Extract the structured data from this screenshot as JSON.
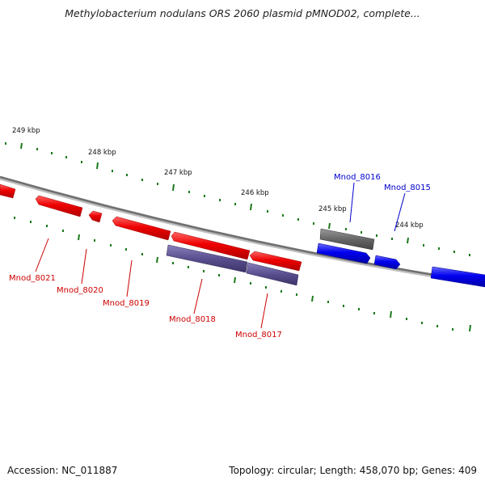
{
  "title": "Methylobacterium nodulans ORS 2060 plasmid pMNOD02, complete...",
  "footer": {
    "accession": "Accession: NC_011887",
    "summary": "Topology: circular; Length: 458,070 bp; Genes: 409"
  },
  "ticks": [
    "249 kbp",
    "248 kbp",
    "247 kbp",
    "246 kbp",
    "245 kbp",
    "244 kbp"
  ],
  "genes": [
    "Mnod_8021",
    "Mnod_8020",
    "Mnod_8019",
    "Mnod_8018",
    "Mnod_8017",
    "Mnod_8016",
    "Mnod_8015"
  ],
  "colors": {
    "forward_cds": "#0000ee",
    "reverse_cds": "#ee0000",
    "gene_block": "#5a4f8f",
    "rna_block": "#666666",
    "backbone": "#808080",
    "tick": "#1a7a1a",
    "label_red": "#cc0000",
    "label_blue": "#0000cc"
  }
}
